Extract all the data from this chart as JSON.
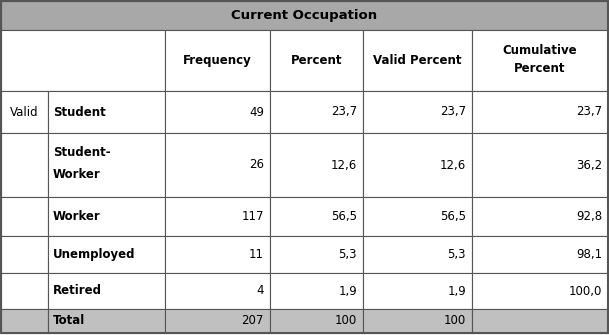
{
  "title": "Current Occupation",
  "title_bg": "#a8a8a8",
  "row_bg": "#ffffff",
  "total_bg": "#c0c0c0",
  "border_color": "#555555",
  "row_label": "Valid",
  "rows": [
    [
      "Student",
      "49",
      "23,7",
      "23,7",
      "23,7"
    ],
    [
      "Student-\nWorker",
      "26",
      "12,6",
      "12,6",
      "36,2"
    ],
    [
      "Worker",
      "117",
      "56,5",
      "56,5",
      "92,8"
    ],
    [
      "Unemployed",
      "11",
      "5,3",
      "5,3",
      "98,1"
    ],
    [
      "Retired",
      "4",
      "1,9",
      "1,9",
      "100,0"
    ],
    [
      "Total",
      "207",
      "100",
      "100",
      ""
    ]
  ],
  "figsize": [
    6.09,
    3.35
  ],
  "dpi": 100
}
